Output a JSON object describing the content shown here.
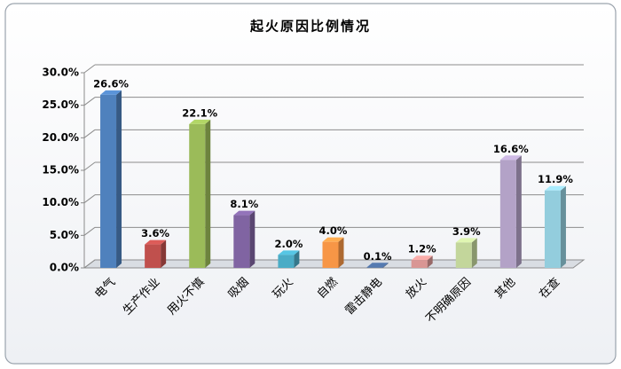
{
  "chart_data": {
    "type": "bar3d",
    "title": "起火原因比例情况",
    "categories": [
      "电气",
      "生产作业",
      "用火不慎",
      "吸烟",
      "玩火",
      "自燃",
      "雷击静电",
      "放火",
      "不明确原因",
      "其他",
      "在查"
    ],
    "values": [
      26.6,
      3.6,
      22.1,
      8.1,
      2.0,
      4.0,
      0.1,
      1.2,
      3.9,
      16.6,
      11.9
    ],
    "value_labels": [
      "26.6%",
      "3.6%",
      "22.1%",
      "8.1%",
      "2.0%",
      "4.0%",
      "0.1%",
      "1.2%",
      "3.9%",
      "16.6%",
      "11.9%"
    ],
    "colors": [
      "#4f81bd",
      "#c0504d",
      "#9bbb59",
      "#8064a2",
      "#4bacc6",
      "#f79646",
      "#4a6a9a",
      "#d99694",
      "#c3d69b",
      "#b3a2c7",
      "#93cddd"
    ],
    "ylim": [
      0,
      30
    ],
    "yticks": [
      {
        "value": 0,
        "label": "0.0%"
      },
      {
        "value": 5,
        "label": "5.0%"
      },
      {
        "value": 10,
        "label": "10.0%"
      },
      {
        "value": 15,
        "label": "15.0%"
      },
      {
        "value": 20,
        "label": "20.0%"
      },
      {
        "value": 25,
        "label": "25.0%"
      },
      {
        "value": 30,
        "label": "30.0%"
      }
    ],
    "grid": true
  }
}
